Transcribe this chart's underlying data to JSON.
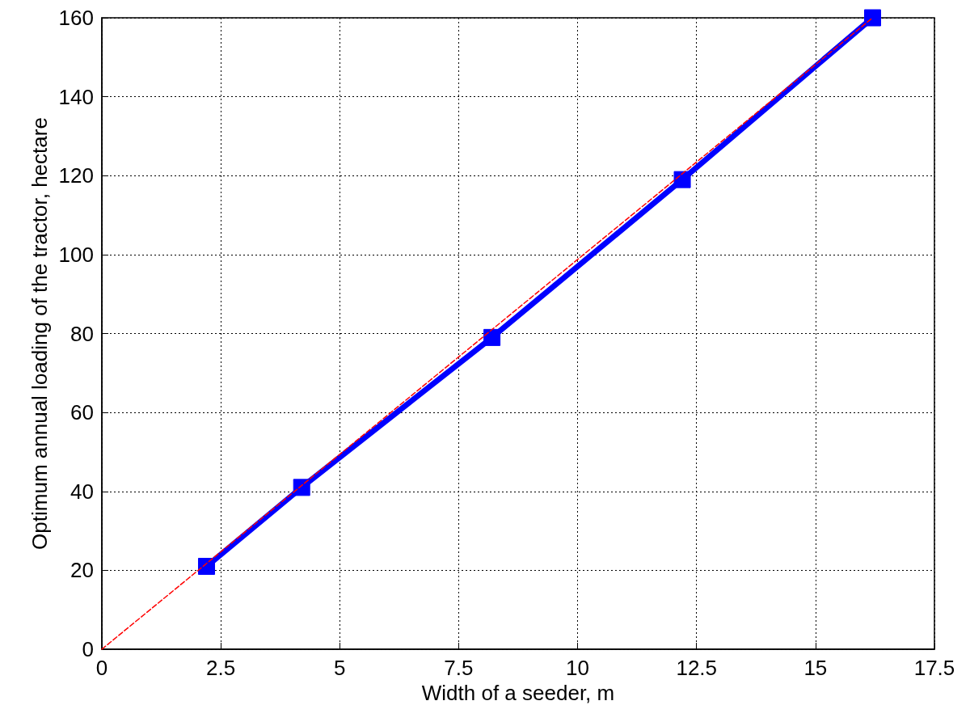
{
  "chart_data": {
    "type": "line",
    "xlabel": "Width of a seeder, m",
    "ylabel": "Optimum annual loading of the tractor, hectare",
    "series": [
      {
        "color": "#0000ff",
        "x": [
          2.2,
          4.2,
          8.2,
          12.2,
          16.2
        ],
        "values": [
          21,
          41,
          79,
          119,
          160
        ],
        "marker": "square",
        "line_style": "solid"
      },
      {
        "color": "#ff0000",
        "x": [
          0,
          16.2
        ],
        "values": [
          0,
          160
        ],
        "marker": "none",
        "line_style": "dashed"
      }
    ],
    "xlim": [
      0,
      17.5
    ],
    "xticks": [
      0,
      2.5,
      5,
      7.5,
      10,
      12.5,
      15,
      17.5
    ],
    "ylim": [
      0,
      160
    ],
    "yticks": [
      0,
      20,
      40,
      60,
      80,
      100,
      120,
      140,
      160
    ],
    "grid": true
  }
}
